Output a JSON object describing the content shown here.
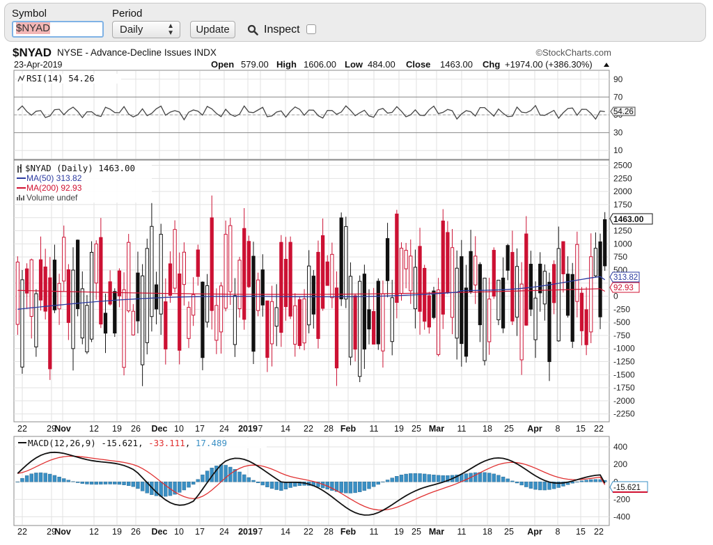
{
  "toolbar": {
    "symbol_label": "Symbol",
    "symbol_value": "$NYAD",
    "period_label": "Period",
    "period_value": "Daily",
    "update_label": "Update",
    "inspect_label": "Inspect",
    "inspect_checked": false
  },
  "chart_header": {
    "symbol": "$NYAD",
    "name": "NYSE - Advance-Decline Issues INDX",
    "brand": "©StockCharts.com",
    "date": "23-Apr-2019",
    "open_label": "Open",
    "open_value": "579.00",
    "high_label": "High",
    "high_value": "1606.00",
    "low_label": "Low",
    "low_value": "484.00",
    "close_label": "Close",
    "close_value": "1463.00",
    "chg_label": "Chg",
    "chg_value": "+1974.00 (+386.30%)"
  },
  "rsi_panel": {
    "legend": "RSI(14) 54.26",
    "ticks": [
      "90",
      "70",
      "50",
      "30",
      "10"
    ],
    "tick_values": [
      90,
      70,
      50,
      30,
      10
    ],
    "current_badge": "54.26"
  },
  "price_panel": {
    "legend_main": "$NYAD (Daily) 1463.00",
    "legend_ma50": "MA(50) 313.82",
    "legend_ma200": "MA(200) 92.93",
    "legend_volume": "Volume undef",
    "ticks": [
      "2500",
      "2250",
      "2000",
      "1750",
      "1500",
      "1250",
      "1000",
      "750",
      "500",
      "250",
      "0",
      "-250",
      "-500",
      "-750",
      "-1000",
      "-1250",
      "-1500",
      "-1750",
      "-2000",
      "-2250"
    ],
    "tick_values": [
      2500,
      2250,
      2000,
      1750,
      1500,
      1250,
      1000,
      750,
      500,
      250,
      0,
      -250,
      -500,
      -750,
      -1000,
      -1250,
      -1500,
      -1750,
      -2000,
      -2250
    ],
    "close_badge": "1463.00",
    "ma50_badge": "313.82",
    "ma200_badge": "92.93"
  },
  "macd_panel": {
    "legend_a": "MACD(12,26,9)",
    "legend_macd": "-15.621",
    "legend_signal": "-33.111",
    "legend_hist": "17.489",
    "ticks": [
      "400",
      "200",
      "0",
      "-200",
      "-400"
    ],
    "tick_values": [
      400,
      200,
      0,
      -200,
      -400
    ],
    "current_badge": "-15.621"
  },
  "x_axis": {
    "labels": [
      "22",
      "29",
      "Nov",
      "12",
      "19",
      "26",
      "Dec",
      "10",
      "17",
      "24",
      "2019",
      "7",
      "14",
      "22",
      "28",
      "Feb",
      "11",
      "19",
      "25",
      "Mar",
      "11",
      "18",
      "25",
      "Apr",
      "8",
      "15",
      "22"
    ],
    "bold": [
      "Nov",
      "Dec",
      "2019",
      "Feb",
      "Mar",
      "Apr"
    ]
  },
  "colors": {
    "up": "#111111",
    "down": "#cc1133",
    "ma50": "#2b3aa0",
    "ma200": "#d01030",
    "rsi": "#444444",
    "macd": "#111111",
    "signal": "#e03030",
    "hist": "#3a8fc4",
    "grid": "#e2e2e2"
  },
  "chart_data": {
    "type": "candlestick",
    "symbol": "$NYAD",
    "period": "Daily",
    "last_bar": {
      "date": "23-Apr-2019",
      "open": 579.0,
      "high": 1606.0,
      "low": 484.0,
      "close": 1463.0,
      "change": 1974.0,
      "change_pct": 386.3
    },
    "ma50": 313.82,
    "ma200": 92.93,
    "rsi14": 54.26,
    "macd": {
      "params": "12,26,9",
      "macd": -15.621,
      "signal": -33.111,
      "histogram": 17.489
    },
    "x_labels": [
      "22",
      "29",
      "Nov",
      "12",
      "19",
      "26",
      "Dec",
      "10",
      "17",
      "24",
      "2019",
      "7",
      "14",
      "22",
      "28",
      "Feb",
      "11",
      "19",
      "25",
      "Mar",
      "11",
      "18",
      "25",
      "Apr",
      "8",
      "15",
      "22"
    ],
    "price_ylim": [
      -2400,
      2600
    ],
    "rsi_ylim": [
      0,
      100
    ],
    "macd_ylim": [
      -500,
      520
    ]
  }
}
